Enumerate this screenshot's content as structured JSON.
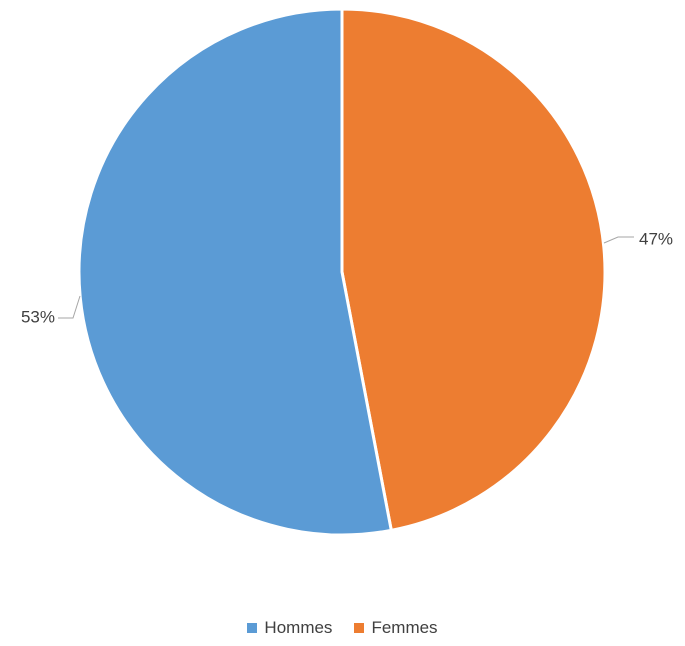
{
  "chart_data": {
    "type": "pie",
    "categories": [
      "Hommes",
      "Femmes"
    ],
    "values": [
      53,
      47
    ],
    "value_labels": [
      "53%",
      "47%"
    ],
    "colors": [
      "#5B9BD5",
      "#ED7D31"
    ],
    "start_angle_deg": 0,
    "direction": "clockwise-for-second-slice",
    "legend": "bottom"
  }
}
